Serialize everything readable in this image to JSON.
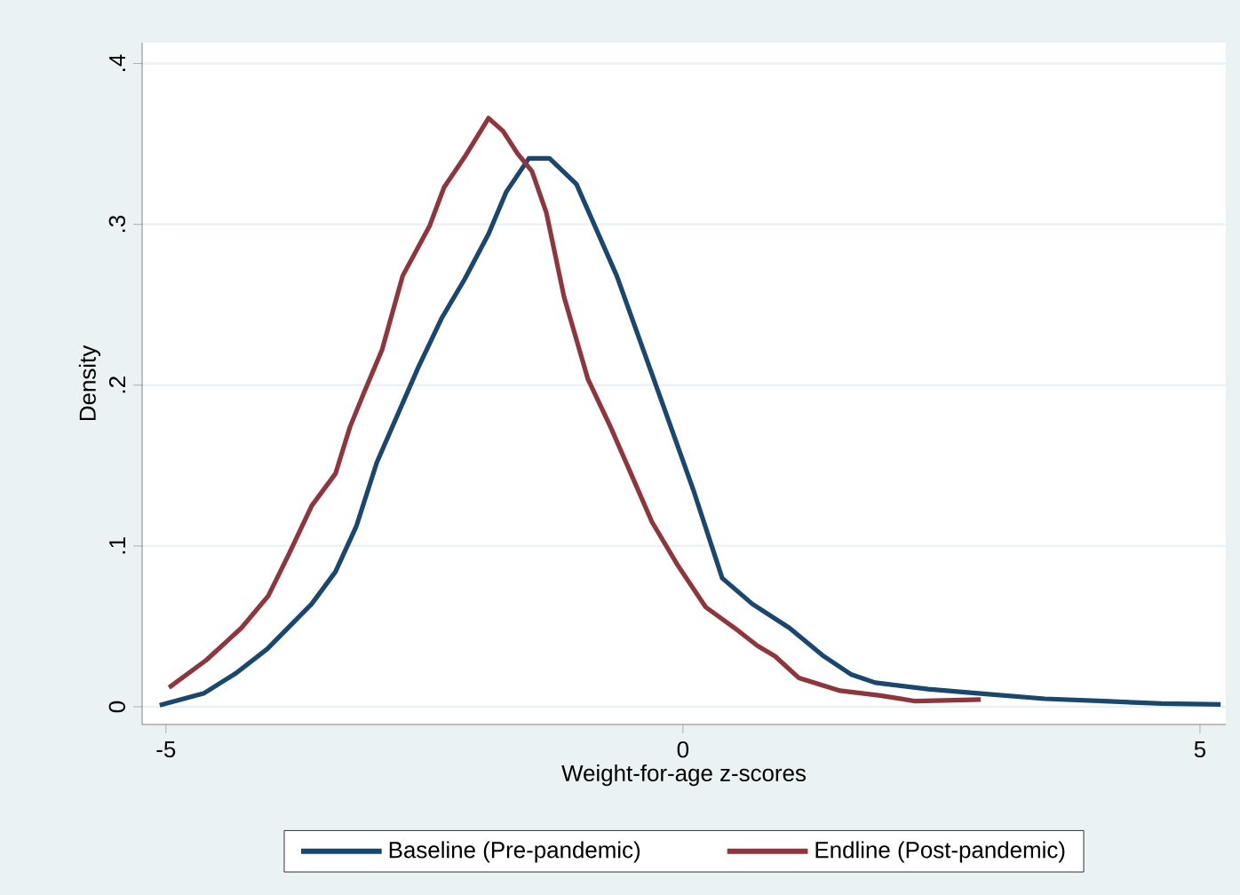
{
  "chart_data": {
    "type": "line",
    "xlabel": "Weight-for-age z-scores",
    "ylabel": "Density",
    "xlim": [
      -5.23,
      5.25
    ],
    "ylim": [
      -0.011,
      0.413
    ],
    "xticks": [
      -5,
      0,
      5
    ],
    "yticks": [
      0,
      {
        "value": 0.1,
        "label": ".1"
      },
      {
        "value": 0.2,
        "label": ".2"
      },
      {
        "value": 0.3,
        "label": ".3"
      },
      {
        "value": 0.4,
        "label": ".4"
      }
    ],
    "grid": "y",
    "legend": "bottom",
    "marker": "none",
    "line_style": "solid",
    "series": [
      {
        "name": "Baseline (Pre-pandemic)",
        "color": "#1a476f",
        "x": [
          -5.06,
          -4.63,
          -4.32,
          -4.02,
          -3.59,
          -3.36,
          -3.16,
          -2.96,
          -2.56,
          -2.33,
          -2.11,
          -1.88,
          -1.71,
          -1.49,
          -1.29,
          -1.03,
          -0.64,
          -0.3,
          0.1,
          0.38,
          0.67,
          1.03,
          1.35,
          1.63,
          1.86,
          2.37,
          2.93,
          3.5,
          4.07,
          4.63,
          5.2
        ],
        "values": [
          0.001,
          0.0085,
          0.021,
          0.036,
          0.064,
          0.084,
          0.112,
          0.152,
          0.211,
          0.242,
          0.266,
          0.294,
          0.32,
          0.341,
          0.341,
          0.325,
          0.268,
          0.207,
          0.135,
          0.08,
          0.064,
          0.049,
          0.032,
          0.02,
          0.015,
          0.011,
          0.008,
          0.005,
          0.0035,
          0.002,
          0.0015
        ]
      },
      {
        "name": "Endline (Post-pandemic)",
        "color": "#90353b",
        "x": [
          -4.97,
          -4.61,
          -4.27,
          -4.01,
          -3.81,
          -3.59,
          -3.36,
          -3.22,
          -3.08,
          -2.91,
          -2.71,
          -2.45,
          -2.31,
          -2.11,
          -1.88,
          -1.74,
          -1.6,
          -1.46,
          -1.32,
          -1.15,
          -0.92,
          -0.7,
          -0.53,
          -0.3,
          -0.05,
          0.22,
          0.5,
          0.72,
          0.89,
          1.12,
          1.52,
          1.91,
          2.25,
          2.88
        ],
        "values": [
          0.012,
          0.029,
          0.049,
          0.069,
          0.095,
          0.125,
          0.145,
          0.174,
          0.196,
          0.222,
          0.268,
          0.299,
          0.323,
          0.342,
          0.366,
          0.358,
          0.344,
          0.333,
          0.307,
          0.255,
          0.204,
          0.174,
          0.149,
          0.115,
          0.088,
          0.062,
          0.049,
          0.038,
          0.0315,
          0.018,
          0.01,
          0.007,
          0.0035,
          0.0045
        ]
      }
    ]
  }
}
